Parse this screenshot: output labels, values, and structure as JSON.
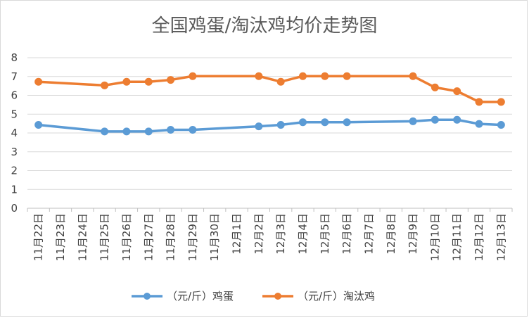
{
  "chart_data": {
    "type": "line",
    "title": "全国鸡蛋/淘汰鸡均价走势图",
    "xlabel": "",
    "ylabel": "",
    "ylim": [
      0,
      8
    ],
    "yticks": [
      0,
      1,
      2,
      3,
      4,
      5,
      6,
      7,
      8
    ],
    "grid": true,
    "legend_position": "bottom",
    "categories": [
      "11月22日",
      "11月23日",
      "11月24日",
      "11月25日",
      "11月26日",
      "11月27日",
      "11月28日",
      "11月29日",
      "11月30日",
      "12月1日",
      "12月2日",
      "12月3日",
      "12月4日",
      "12月5日",
      "12月6日",
      "12月7日",
      "12月8日",
      "12月9日",
      "12月10日",
      "12月11日",
      "12月12日",
      "12月13日"
    ],
    "series": [
      {
        "name": "（元/斤）鸡蛋",
        "color": "#5b9bd5",
        "values": [
          4.43,
          null,
          null,
          4.08,
          4.08,
          4.08,
          4.17,
          4.17,
          null,
          null,
          4.35,
          4.43,
          4.57,
          4.57,
          4.57,
          null,
          null,
          4.62,
          4.7,
          4.7,
          4.48,
          4.43
        ]
      },
      {
        "name": "（元/斤）淘汰鸡",
        "color": "#ed7d31",
        "values": [
          6.72,
          null,
          null,
          6.53,
          6.72,
          6.72,
          6.82,
          7.02,
          null,
          null,
          7.02,
          6.72,
          7.02,
          7.02,
          7.02,
          null,
          null,
          7.02,
          6.42,
          6.22,
          5.65,
          5.65
        ]
      }
    ]
  }
}
